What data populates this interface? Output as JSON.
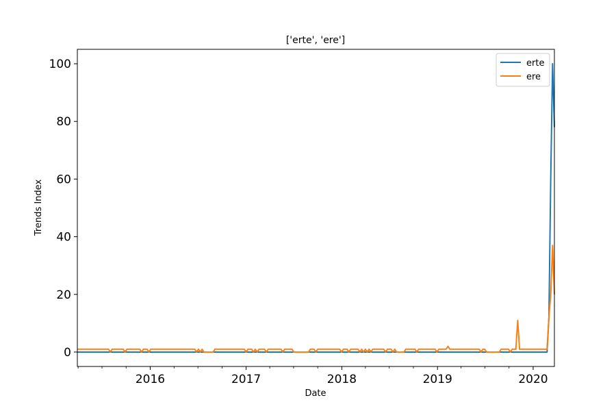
{
  "chart_data": {
    "type": "line",
    "title": "['erte', 'ere']",
    "xlabel": "Date",
    "ylabel": "Trends Index",
    "x_tick_labels": [
      "2016",
      "2017",
      "2018",
      "2019",
      "2020"
    ],
    "y_tick_labels": [
      "0",
      "20",
      "40",
      "60",
      "80",
      "100"
    ],
    "xlim": [
      "2015-03-29",
      "2020-03-22"
    ],
    "ylim": [
      -5,
      105
    ],
    "grid": false,
    "legend_position": "upper right",
    "series": [
      {
        "name": "erte",
        "color": "#1f77b4",
        "points": [
          [
            "2015-03-29",
            0
          ],
          [
            "2020-02-23",
            0
          ],
          [
            "2020-03-01",
            12
          ],
          [
            "2020-03-08",
            60
          ],
          [
            "2020-03-15",
            100
          ],
          [
            "2020-03-22",
            78
          ]
        ]
      },
      {
        "name": "ere",
        "color": "#ff7f0e",
        "points": [
          [
            "2015-03-29",
            1
          ],
          [
            "2015-07-26",
            1
          ],
          [
            "2015-08-02",
            0
          ],
          [
            "2015-08-09",
            1
          ],
          [
            "2015-09-20",
            1
          ],
          [
            "2015-09-27",
            0
          ],
          [
            "2015-10-04",
            1
          ],
          [
            "2015-11-22",
            1
          ],
          [
            "2015-11-29",
            0
          ],
          [
            "2015-12-06",
            1
          ],
          [
            "2015-12-20",
            1
          ],
          [
            "2015-12-27",
            0
          ],
          [
            "2016-01-03",
            1
          ],
          [
            "2016-06-19",
            1
          ],
          [
            "2016-06-26",
            0
          ],
          [
            "2016-07-03",
            1
          ],
          [
            "2016-07-10",
            0
          ],
          [
            "2016-07-17",
            1
          ],
          [
            "2016-07-24",
            0
          ],
          [
            "2016-08-28",
            0
          ],
          [
            "2016-09-04",
            1
          ],
          [
            "2016-12-25",
            1
          ],
          [
            "2017-01-01",
            0
          ],
          [
            "2017-01-08",
            1
          ],
          [
            "2017-01-22",
            1
          ],
          [
            "2017-01-29",
            0
          ],
          [
            "2017-02-05",
            1
          ],
          [
            "2017-02-12",
            0
          ],
          [
            "2017-02-19",
            1
          ],
          [
            "2017-03-12",
            1
          ],
          [
            "2017-03-19",
            0
          ],
          [
            "2017-03-26",
            1
          ],
          [
            "2017-05-14",
            1
          ],
          [
            "2017-05-21",
            0
          ],
          [
            "2017-05-28",
            1
          ],
          [
            "2017-06-25",
            1
          ],
          [
            "2017-07-02",
            0
          ],
          [
            "2017-08-27",
            0
          ],
          [
            "2017-09-03",
            1
          ],
          [
            "2017-09-17",
            1
          ],
          [
            "2017-09-24",
            0
          ],
          [
            "2017-10-01",
            1
          ],
          [
            "2017-12-24",
            1
          ],
          [
            "2017-12-31",
            0
          ],
          [
            "2018-01-07",
            1
          ],
          [
            "2018-01-21",
            1
          ],
          [
            "2018-01-28",
            0
          ],
          [
            "2018-02-04",
            1
          ],
          [
            "2018-03-04",
            1
          ],
          [
            "2018-03-11",
            0
          ],
          [
            "2018-03-18",
            1
          ],
          [
            "2018-03-25",
            0
          ],
          [
            "2018-04-01",
            1
          ],
          [
            "2018-04-08",
            0
          ],
          [
            "2018-04-15",
            1
          ],
          [
            "2018-04-22",
            0
          ],
          [
            "2018-04-29",
            1
          ],
          [
            "2018-06-10",
            1
          ],
          [
            "2018-06-17",
            0
          ],
          [
            "2018-06-24",
            1
          ],
          [
            "2018-07-08",
            1
          ],
          [
            "2018-07-15",
            0
          ],
          [
            "2018-07-22",
            1
          ],
          [
            "2018-07-29",
            0
          ],
          [
            "2018-08-26",
            0
          ],
          [
            "2018-09-02",
            1
          ],
          [
            "2018-10-07",
            1
          ],
          [
            "2018-10-14",
            0
          ],
          [
            "2018-10-21",
            1
          ],
          [
            "2018-12-23",
            1
          ],
          [
            "2018-12-30",
            0
          ],
          [
            "2019-01-06",
            1
          ],
          [
            "2019-02-03",
            1
          ],
          [
            "2019-02-10",
            2
          ],
          [
            "2019-02-17",
            1
          ],
          [
            "2019-06-09",
            1
          ],
          [
            "2019-06-16",
            0
          ],
          [
            "2019-06-23",
            1
          ],
          [
            "2019-06-30",
            1
          ],
          [
            "2019-07-07",
            0
          ],
          [
            "2019-08-25",
            0
          ],
          [
            "2019-09-01",
            1
          ],
          [
            "2019-09-29",
            1
          ],
          [
            "2019-10-06",
            0
          ],
          [
            "2019-10-13",
            1
          ],
          [
            "2019-10-27",
            1
          ],
          [
            "2019-11-03",
            11
          ],
          [
            "2019-11-10",
            1
          ],
          [
            "2020-02-16",
            1
          ],
          [
            "2020-02-23",
            1
          ],
          [
            "2020-03-01",
            12
          ],
          [
            "2020-03-08",
            20
          ],
          [
            "2020-03-15",
            37
          ],
          [
            "2020-03-22",
            20
          ]
        ]
      }
    ]
  }
}
